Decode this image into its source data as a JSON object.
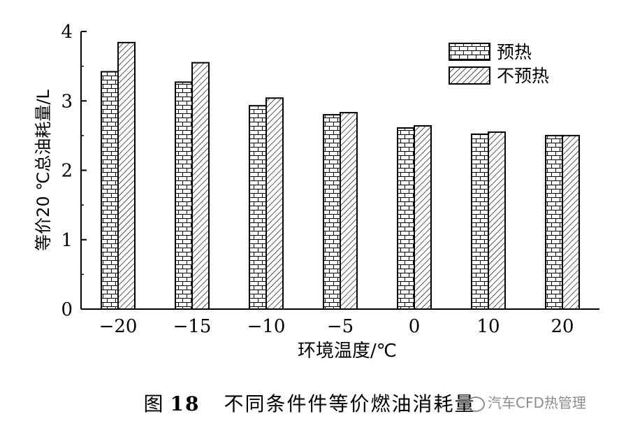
{
  "chart_data": {
    "type": "bar",
    "categories": [
      "-20",
      "-15",
      "-10",
      "-5",
      "0",
      "10",
      "20"
    ],
    "series": [
      {
        "name": "预热",
        "values": [
          3.42,
          3.27,
          2.93,
          2.8,
          2.61,
          2.52,
          2.5
        ]
      },
      {
        "name": "不预热",
        "values": [
          3.84,
          3.55,
          3.04,
          2.83,
          2.64,
          2.55,
          2.5
        ]
      }
    ],
    "xlabel": "环境温度/℃",
    "ylabel": "等价20 ℃总油耗量/L",
    "ylim": [
      0,
      4
    ],
    "yticks": [
      "0",
      "1",
      "2",
      "3",
      "4"
    ],
    "xtick_labels": [
      "−20",
      "−15",
      "−10",
      "−5",
      "0",
      "10",
      "20"
    ],
    "grid": false,
    "legend_position": "top-right"
  },
  "caption": {
    "prefix": "图",
    "number": "18",
    "text": "不同条件件等价燃油消耗量"
  },
  "watermark": "汽车CFD热管理"
}
